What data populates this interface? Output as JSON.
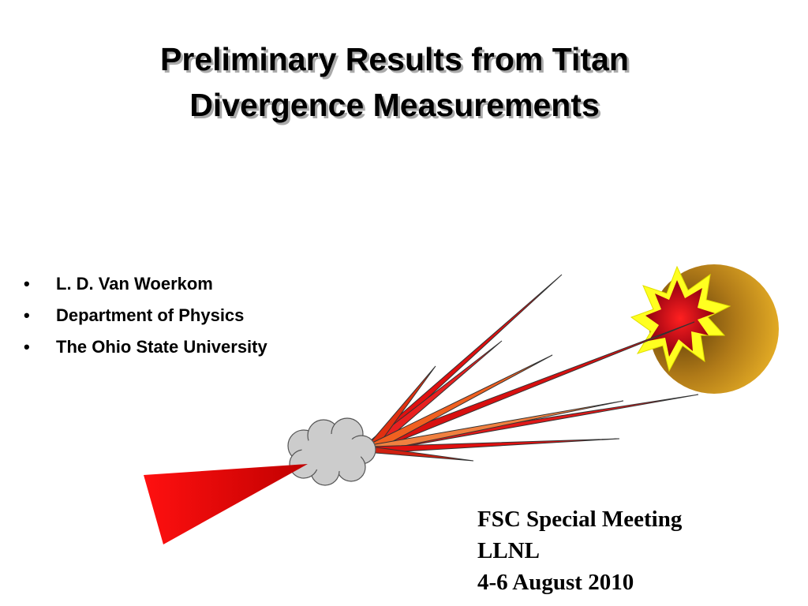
{
  "title": {
    "lines": [
      "Preliminary Results from Titan",
      "Divergence Measurements"
    ]
  },
  "bullets": [
    "L. D. Van Woerkom",
    "Department of Physics",
    "The Ohio State University"
  ],
  "footer": {
    "lines": [
      "FSC Special Meeting",
      "LLNL",
      "4-6 August 2010"
    ]
  }
}
